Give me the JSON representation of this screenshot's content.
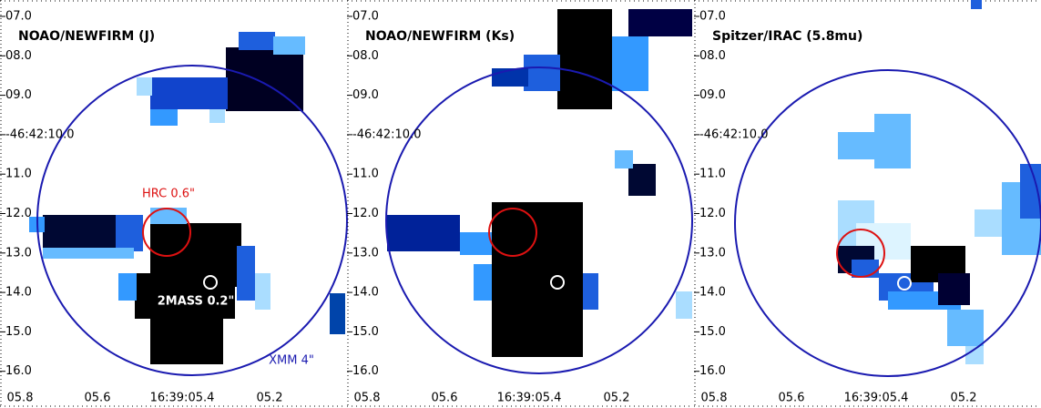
{
  "panels": [
    {
      "title": "NOAO/NEWFIRM (J)",
      "y_ticks": [
        "07.0",
        "08.0",
        "09.0",
        "-46:42:10.0",
        "11.0",
        "12.0",
        "13.0",
        "14.0",
        "15.0",
        "16.0"
      ],
      "x_ticks": [
        "05.8",
        "05.6",
        "16:39:05.4",
        "05.2"
      ],
      "annotations": {
        "hrc": "HRC 0.6\"",
        "twomass": "2MASS 0.2\"",
        "xmm": "XMM 4\""
      }
    },
    {
      "title": "NOAO/NEWFIRM (Ks)",
      "y_ticks": [
        "07.0",
        "08.0",
        "09.0",
        "-46:42:10.0",
        "11.0",
        "12.0",
        "13.0",
        "14.0",
        "15.0",
        "16.0"
      ],
      "x_ticks": [
        "05.8",
        "05.6",
        "16:39:05.4",
        "05.2"
      ]
    },
    {
      "title": "Spitzer/IRAC (5.8mu)",
      "y_ticks": [
        "07.0",
        "08.0",
        "09.0",
        "-46:42:10.0",
        "11.0",
        "12.0",
        "13.0",
        "14.0",
        "15.0",
        "16.0"
      ],
      "x_ticks": [
        "05.8",
        "05.6",
        "16:39:05.4",
        "05.2"
      ]
    }
  ]
}
